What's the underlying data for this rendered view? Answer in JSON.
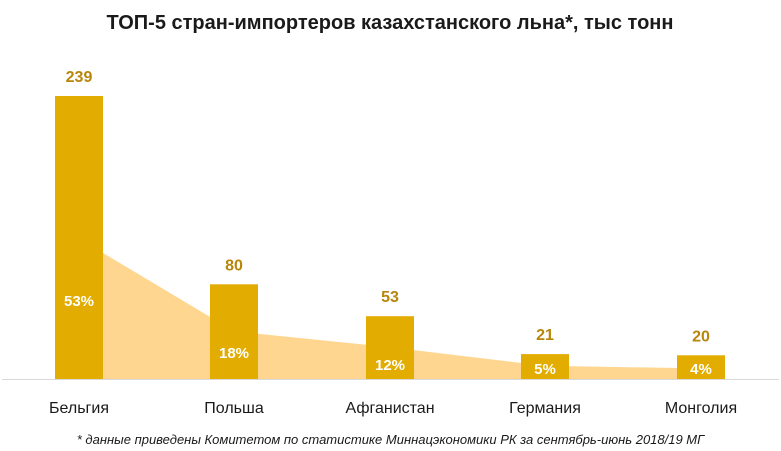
{
  "title": "ТОП-5 стран-импортеров казахстанского льна*, тыс тонн",
  "footnote": "* данные приведены Комитетом по статистике Миннацэкономики РК за сентябрь-июнь 2018/19 МГ",
  "colors": {
    "bar": "#E2AC00",
    "area": "#FFD68F",
    "value_label": "#B8860B",
    "share_label": "#ffffff",
    "axis": "#D9D9D9",
    "category_label": "#1a1a1a"
  },
  "chart_data": {
    "type": "bar",
    "title": "ТОП-5 стран-импортеров казахстанского льна*, тыс тонн",
    "categories": [
      "Бельгия",
      "Польша",
      "Афганистан",
      "Германия",
      "Монголия"
    ],
    "series": [
      {
        "values": [
          239,
          80,
          53,
          21,
          20
        ],
        "value_labels": [
          "239",
          "80",
          "53",
          "21",
          "20"
        ],
        "type": "bar"
      },
      {
        "values": [
          53,
          18,
          12,
          5,
          4
        ],
        "value_labels": [
          "53%",
          "18%",
          "12%",
          "5%",
          "4%"
        ],
        "type": "area"
      }
    ],
    "ylim": [
      0,
      239
    ],
    "grid": false,
    "legend": "none"
  }
}
